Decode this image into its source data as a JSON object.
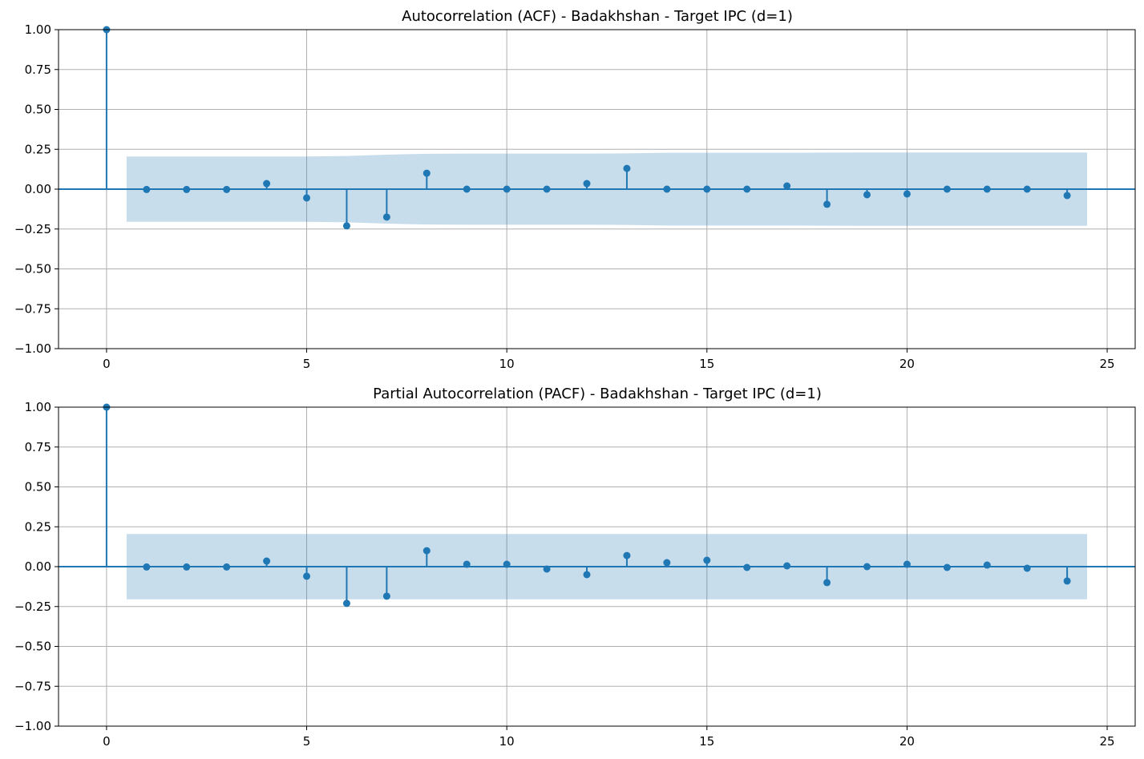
{
  "colors": {
    "series": "#1f77b4",
    "confidence_band": "#1f77b4",
    "grid": "#b0b0b0"
  },
  "chart_data": [
    {
      "type": "stem",
      "title": "Autocorrelation (ACF) - Badakhshan - Target IPC (d=1)",
      "xlim": [
        -1.2,
        25.7
      ],
      "ylim": [
        -1.0,
        1.0
      ],
      "xticks": [
        0,
        5,
        10,
        15,
        20,
        25
      ],
      "xtick_labels": [
        "0",
        "5",
        "10",
        "15",
        "20",
        "25"
      ],
      "yticks": [
        1.0,
        0.75,
        0.5,
        0.25,
        0.0,
        -0.25,
        -0.5,
        -0.75,
        -1.0
      ],
      "ytick_labels": [
        "1.00",
        "0.75",
        "0.50",
        "0.25",
        "0.00",
        "−0.25",
        "−0.50",
        "−0.75",
        "−1.00"
      ],
      "grid": true,
      "x": [
        0,
        1,
        2,
        3,
        4,
        5,
        6,
        7,
        8,
        9,
        10,
        11,
        12,
        13,
        14,
        15,
        16,
        17,
        18,
        19,
        20,
        21,
        22,
        23,
        24
      ],
      "values": [
        1.0,
        -0.002,
        -0.002,
        -0.002,
        0.035,
        -0.055,
        -0.23,
        -0.175,
        0.1,
        0.0,
        0.0,
        0.0,
        0.035,
        0.13,
        0.0,
        0.0,
        0.0,
        0.02,
        -0.095,
        -0.035,
        -0.03,
        0.0,
        0.0,
        0.0,
        -0.04
      ],
      "confidence_interval": {
        "x": [
          0.5,
          1,
          2,
          3,
          4,
          5,
          6,
          7,
          8,
          9,
          10,
          11,
          12,
          13,
          14,
          15,
          16,
          17,
          18,
          19,
          20,
          21,
          22,
          23,
          24,
          24.5
        ],
        "upper": [
          0.205,
          0.205,
          0.205,
          0.205,
          0.205,
          0.205,
          0.208,
          0.216,
          0.222,
          0.223,
          0.223,
          0.223,
          0.223,
          0.224,
          0.228,
          0.228,
          0.228,
          0.228,
          0.229,
          0.23,
          0.23,
          0.23,
          0.23,
          0.23,
          0.23,
          0.23
        ],
        "lower": [
          -0.205,
          -0.205,
          -0.205,
          -0.205,
          -0.205,
          -0.205,
          -0.208,
          -0.216,
          -0.222,
          -0.223,
          -0.223,
          -0.223,
          -0.223,
          -0.224,
          -0.228,
          -0.228,
          -0.228,
          -0.228,
          -0.229,
          -0.23,
          -0.23,
          -0.23,
          -0.23,
          -0.23,
          -0.23,
          -0.23
        ]
      }
    },
    {
      "type": "stem",
      "title": "Partial Autocorrelation (PACF) - Badakhshan - Target IPC (d=1)",
      "xlim": [
        -1.2,
        25.7
      ],
      "ylim": [
        -1.0,
        1.0
      ],
      "xticks": [
        0,
        5,
        10,
        15,
        20,
        25
      ],
      "xtick_labels": [
        "0",
        "5",
        "10",
        "15",
        "20",
        "25"
      ],
      "yticks": [
        1.0,
        0.75,
        0.5,
        0.25,
        0.0,
        -0.25,
        -0.5,
        -0.75,
        -1.0
      ],
      "ytick_labels": [
        "1.00",
        "0.75",
        "0.50",
        "0.25",
        "0.00",
        "−0.25",
        "−0.50",
        "−0.75",
        "−1.00"
      ],
      "grid": true,
      "x": [
        0,
        1,
        2,
        3,
        4,
        5,
        6,
        7,
        8,
        9,
        10,
        11,
        12,
        13,
        14,
        15,
        16,
        17,
        18,
        19,
        20,
        21,
        22,
        23,
        24
      ],
      "values": [
        1.0,
        -0.002,
        -0.002,
        -0.002,
        0.035,
        -0.06,
        -0.23,
        -0.185,
        0.1,
        0.015,
        0.015,
        -0.015,
        -0.05,
        0.07,
        0.025,
        0.04,
        -0.005,
        0.005,
        -0.1,
        0.0,
        0.015,
        -0.005,
        0.01,
        -0.01,
        -0.09
      ],
      "confidence_interval": {
        "x": [
          0.5,
          24.5
        ],
        "upper": [
          0.205,
          0.205
        ],
        "lower": [
          -0.205,
          -0.205
        ]
      }
    }
  ]
}
